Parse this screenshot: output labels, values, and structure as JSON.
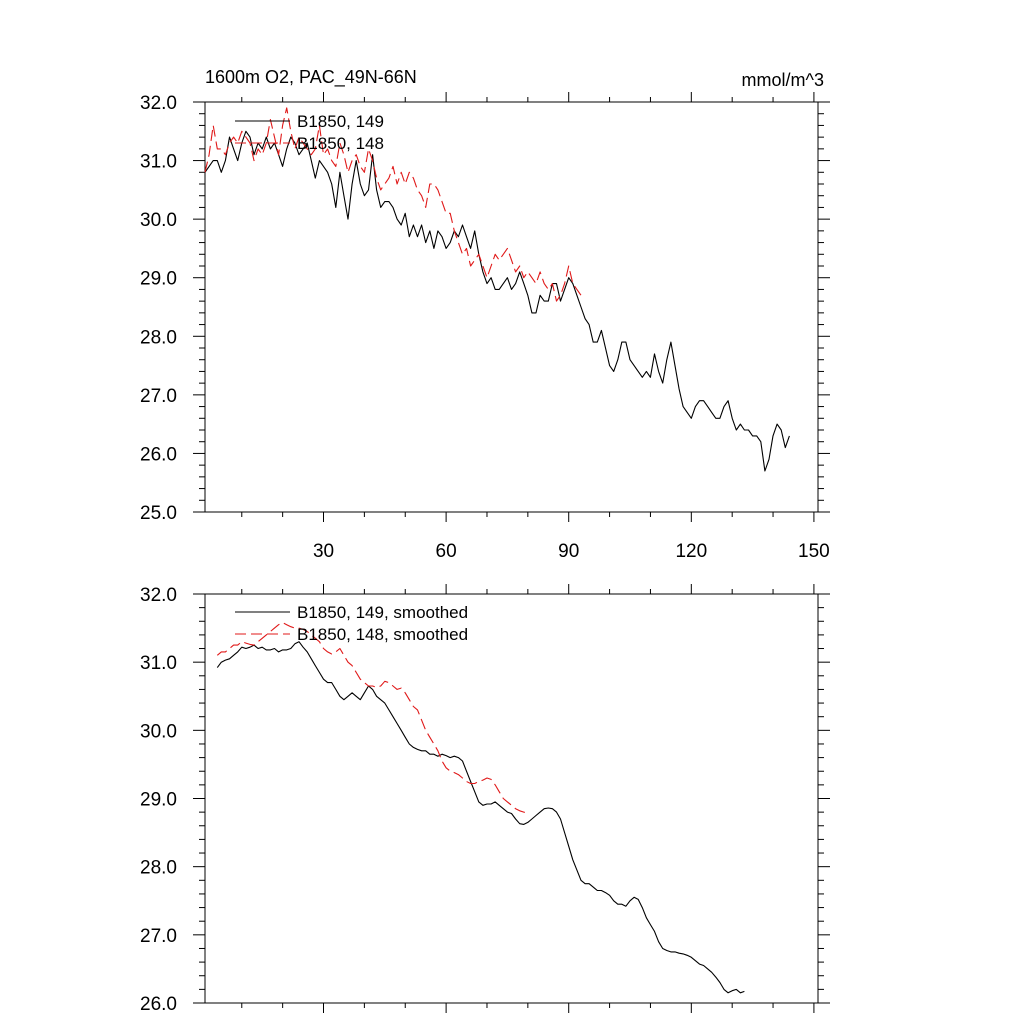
{
  "chart_data": [
    {
      "type": "line",
      "title": "1600m O2, PAC_49N-66N",
      "units": "mmol/m^3",
      "xlabel": "",
      "ylabel": "",
      "xlim": [
        1,
        151
      ],
      "ylim": [
        25.0,
        32.0
      ],
      "x_ticks": [
        30,
        60,
        90,
        120,
        150
      ],
      "x_tick_labels": [
        "30",
        "60",
        "90",
        "120",
        "150"
      ],
      "y_ticks": [
        25.0,
        26.0,
        27.0,
        28.0,
        29.0,
        30.0,
        31.0,
        32.0
      ],
      "y_tick_labels": [
        "25.0",
        "26.0",
        "27.0",
        "28.0",
        "29.0",
        "30.0",
        "31.0",
        "32.0"
      ],
      "legend": "top-left",
      "series": [
        {
          "name": "B1850, 149",
          "color": "#000000",
          "dash": "solid",
          "x_start": 1,
          "values": [
            30.8,
            30.9,
            31.0,
            31.0,
            30.8,
            31.0,
            31.4,
            31.2,
            31.0,
            31.3,
            31.5,
            31.4,
            31.1,
            31.3,
            31.2,
            31.4,
            31.2,
            31.3,
            31.1,
            30.9,
            31.2,
            31.4,
            31.3,
            31.1,
            31.2,
            31.3,
            31.0,
            30.7,
            31.0,
            30.9,
            30.8,
            30.6,
            30.2,
            30.8,
            30.4,
            30.0,
            30.6,
            31.0,
            30.6,
            30.4,
            30.5,
            31.1,
            30.5,
            30.2,
            30.3,
            30.3,
            30.2,
            30.0,
            29.9,
            30.1,
            29.7,
            29.9,
            29.7,
            29.9,
            29.6,
            29.8,
            29.5,
            29.8,
            29.7,
            29.5,
            29.6,
            29.8,
            29.7,
            29.9,
            29.7,
            29.5,
            29.8,
            29.4,
            29.1,
            28.9,
            29.0,
            28.8,
            28.8,
            28.9,
            29.0,
            28.8,
            28.9,
            29.1,
            28.9,
            28.7,
            28.4,
            28.4,
            28.7,
            28.6,
            28.6,
            28.9,
            28.9,
            28.6,
            28.8,
            29.0,
            28.9,
            28.7,
            28.5,
            28.3,
            28.2,
            27.9,
            27.9,
            28.1,
            27.8,
            27.5,
            27.4,
            27.6,
            27.9,
            27.9,
            27.6,
            27.5,
            27.4,
            27.3,
            27.4,
            27.3,
            27.7,
            27.4,
            27.2,
            27.6,
            27.9,
            27.5,
            27.1,
            26.8,
            26.7,
            26.6,
            26.8,
            26.9,
            26.9,
            26.8,
            26.7,
            26.6,
            26.6,
            26.8,
            26.9,
            26.6,
            26.4,
            26.5,
            26.4,
            26.4,
            26.3,
            26.3,
            26.2,
            25.7,
            25.9,
            26.3,
            26.5,
            26.4,
            26.1,
            26.3
          ]
        },
        {
          "name": "B1850, 148",
          "color": "#e01919",
          "dash": "dashed",
          "x_start": 1,
          "values": [
            30.8,
            31.1,
            31.6,
            31.2,
            31.2,
            31.1,
            31.3,
            31.4,
            31.3,
            31.5,
            31.4,
            31.3,
            31.0,
            31.2,
            31.1,
            31.3,
            31.7,
            31.4,
            31.1,
            31.6,
            31.9,
            31.5,
            31.2,
            31.4,
            31.3,
            31.2,
            31.1,
            31.2,
            31.6,
            31.1,
            31.2,
            31.0,
            30.9,
            31.3,
            31.1,
            30.8,
            31.0,
            31.1,
            30.9,
            30.8,
            31.2,
            31.0,
            30.7,
            30.5,
            30.6,
            30.7,
            30.9,
            30.6,
            30.8,
            30.6,
            30.8,
            30.7,
            30.5,
            30.4,
            30.2,
            30.6,
            30.6,
            30.5,
            30.3,
            30.1,
            30.1,
            29.8,
            29.6,
            29.4,
            29.5,
            29.2,
            29.3,
            29.4,
            29.2,
            29.0,
            29.2,
            29.4,
            29.3,
            29.4,
            29.5,
            29.3,
            29.1,
            29.2,
            29.0,
            29.1,
            29.0,
            28.9,
            29.1,
            28.9,
            28.8,
            28.9,
            28.6,
            28.7,
            28.9,
            29.2,
            28.9,
            28.8,
            28.7
          ]
        }
      ]
    },
    {
      "type": "line",
      "title": "",
      "xlabel": "",
      "ylabel": "",
      "xlim": [
        1,
        151
      ],
      "ylim": [
        26.0,
        32.0
      ],
      "y_ticks": [
        26.0,
        27.0,
        28.0,
        29.0,
        30.0,
        31.0,
        32.0
      ],
      "y_tick_labels": [
        "26.0",
        "27.0",
        "28.0",
        "29.0",
        "30.0",
        "31.0",
        "32.0"
      ],
      "legend": "top-left",
      "series": [
        {
          "name": "B1850, 149, smoothed",
          "color": "#000000",
          "dash": "solid",
          "x_start": 4,
          "values": [
            30.92,
            31.0,
            31.03,
            31.05,
            31.1,
            31.15,
            31.22,
            31.2,
            31.22,
            31.25,
            31.2,
            31.22,
            31.18,
            31.18,
            31.2,
            31.15,
            31.18,
            31.18,
            31.2,
            31.27,
            31.3,
            31.22,
            31.15,
            31.05,
            30.95,
            30.85,
            30.75,
            30.7,
            30.7,
            30.6,
            30.5,
            30.45,
            30.5,
            30.55,
            30.5,
            30.45,
            30.55,
            30.65,
            30.6,
            30.5,
            30.45,
            30.4,
            30.3,
            30.2,
            30.1,
            30.0,
            29.9,
            29.8,
            29.75,
            29.72,
            29.7,
            29.7,
            29.65,
            29.65,
            29.62,
            29.65,
            29.63,
            29.6,
            29.62,
            29.6,
            29.55,
            29.4,
            29.25,
            29.1,
            28.95,
            28.9,
            28.92,
            28.92,
            28.95,
            28.9,
            28.85,
            28.8,
            28.78,
            28.7,
            28.63,
            28.62,
            28.65,
            28.7,
            28.75,
            28.8,
            28.85,
            28.86,
            28.85,
            28.8,
            28.7,
            28.5,
            28.3,
            28.1,
            27.95,
            27.8,
            27.75,
            27.75,
            27.7,
            27.65,
            27.65,
            27.62,
            27.58,
            27.5,
            27.45,
            27.45,
            27.42,
            27.5,
            27.55,
            27.52,
            27.4,
            27.25,
            27.15,
            27.05,
            26.9,
            26.8,
            26.77,
            26.75,
            26.75,
            26.73,
            26.72,
            26.7,
            26.67,
            26.62,
            26.57,
            26.55,
            26.5,
            26.45,
            26.38,
            26.3,
            26.2,
            26.15,
            26.18,
            26.2,
            26.15,
            26.17
          ]
        },
        {
          "name": "B1850, 148, smoothed",
          "color": "#e01919",
          "dash": "dashed",
          "x_start": 4,
          "values": [
            31.1,
            31.15,
            31.15,
            31.2,
            31.25,
            31.25,
            31.3,
            31.28,
            31.26,
            31.25,
            31.3,
            31.35,
            31.4,
            31.45,
            31.5,
            31.55,
            31.58,
            31.55,
            31.52,
            31.5,
            31.5,
            31.48,
            31.45,
            31.4,
            31.35,
            31.3,
            31.2,
            31.15,
            31.12,
            31.15,
            31.2,
            31.1,
            31.0,
            30.95,
            30.85,
            30.75,
            30.7,
            30.65,
            30.65,
            30.63,
            30.65,
            30.72,
            30.7,
            30.65,
            30.6,
            30.62,
            30.55,
            30.45,
            30.35,
            30.3,
            30.15,
            30.0,
            29.9,
            29.8,
            29.7,
            29.55,
            29.45,
            29.4,
            29.38,
            29.35,
            29.3,
            29.25,
            29.22,
            29.22,
            29.25,
            29.27,
            29.3,
            29.28,
            29.2,
            29.1,
            29.0,
            28.95,
            28.9,
            28.85,
            28.82,
            28.8,
            28.78
          ]
        }
      ]
    }
  ]
}
